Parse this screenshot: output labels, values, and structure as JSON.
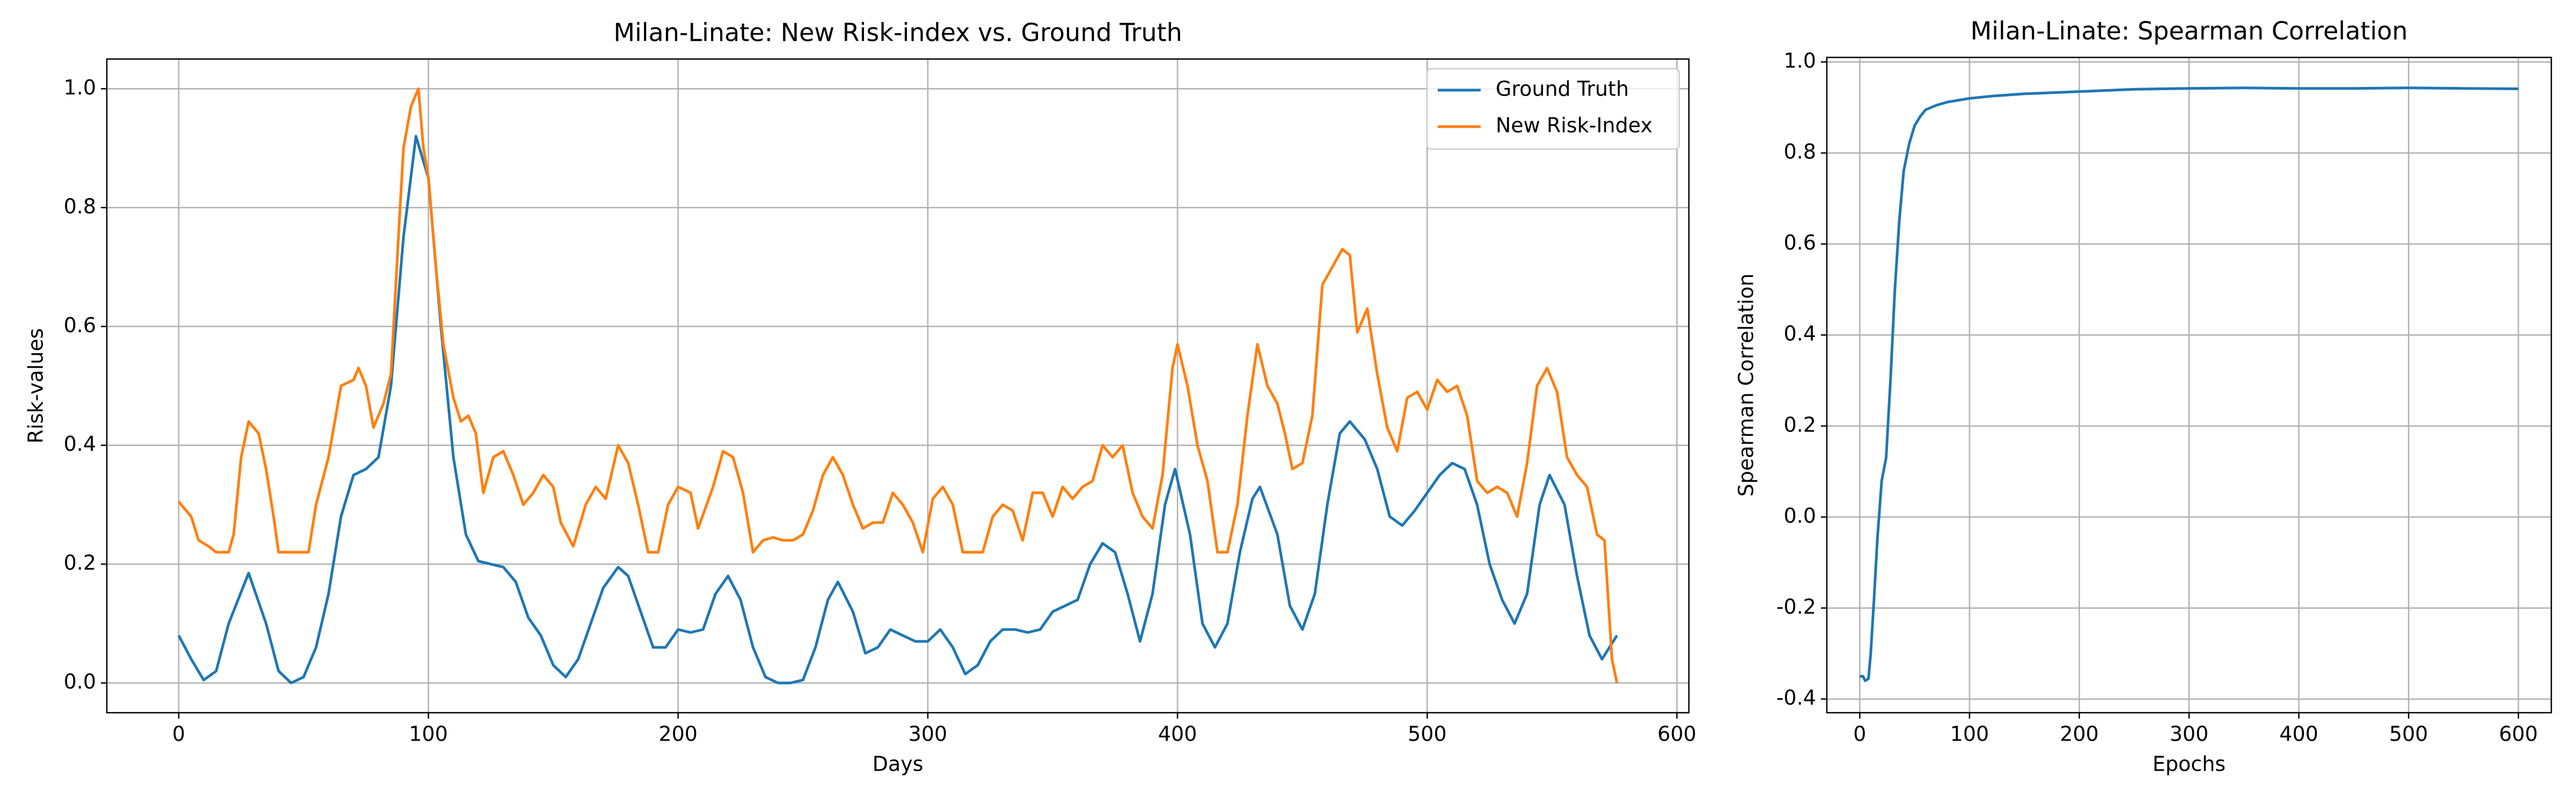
{
  "chart_data": [
    {
      "type": "line",
      "title": "Milan-Linate: New Risk-index vs. Ground Truth",
      "xlabel": "Days",
      "ylabel": "Risk-values",
      "xlim": [
        -28.8,
        604.8
      ],
      "xticks": [
        0,
        100,
        200,
        300,
        400,
        500,
        600
      ],
      "ylim": [
        -0.05,
        1.05
      ],
      "yticks": [
        {
          "value": 0,
          "label": "0.0"
        },
        0.2,
        0.4,
        0.6,
        0.8,
        {
          "value": 1,
          "label": "1.0"
        }
      ],
      "grid": true,
      "legend": "upper-right",
      "series": [
        {
          "name": "Ground Truth",
          "color": "#1f77b4",
          "x": [
            0,
            5,
            10,
            15,
            20,
            28,
            35,
            40,
            45,
            50,
            55,
            60,
            65,
            70,
            75,
            80,
            85,
            90,
            95,
            100,
            105,
            110,
            115,
            120,
            125,
            130,
            135,
            140,
            145,
            150,
            155,
            160,
            165,
            170,
            176,
            180,
            185,
            190,
            195,
            200,
            205,
            210,
            215,
            220,
            225,
            230,
            235,
            240,
            245,
            250,
            255,
            260,
            264,
            270,
            275,
            280,
            285,
            290,
            295,
            300,
            305,
            310,
            315,
            320,
            325,
            330,
            335,
            340,
            345,
            350,
            355,
            360,
            365,
            370,
            375,
            380,
            385,
            390,
            395,
            399,
            405,
            410,
            415,
            420,
            425,
            430,
            433,
            440,
            445,
            450,
            455,
            460,
            465,
            469,
            475,
            480,
            485,
            490,
            495,
            500,
            505,
            510,
            515,
            520,
            525,
            530,
            535,
            540,
            545,
            549,
            555,
            560,
            565,
            570,
            576
          ],
          "values": [
            0.08,
            0.04,
            0.005,
            0.02,
            0.1,
            0.185,
            0.1,
            0.02,
            0.0,
            0.01,
            0.06,
            0.15,
            0.28,
            0.35,
            0.36,
            0.38,
            0.5,
            0.75,
            0.92,
            0.85,
            0.6,
            0.38,
            0.25,
            0.205,
            0.2,
            0.195,
            0.17,
            0.11,
            0.08,
            0.03,
            0.01,
            0.04,
            0.1,
            0.16,
            0.195,
            0.18,
            0.12,
            0.06,
            0.06,
            0.09,
            0.085,
            0.09,
            0.15,
            0.18,
            0.14,
            0.06,
            0.01,
            0.0,
            0.0,
            0.005,
            0.06,
            0.14,
            0.17,
            0.12,
            0.05,
            0.06,
            0.09,
            0.08,
            0.07,
            0.07,
            0.09,
            0.06,
            0.015,
            0.03,
            0.07,
            0.09,
            0.09,
            0.085,
            0.09,
            0.12,
            0.13,
            0.14,
            0.2,
            0.235,
            0.22,
            0.15,
            0.07,
            0.15,
            0.3,
            0.36,
            0.25,
            0.1,
            0.06,
            0.1,
            0.22,
            0.31,
            0.33,
            0.25,
            0.13,
            0.09,
            0.15,
            0.3,
            0.42,
            0.44,
            0.41,
            0.36,
            0.28,
            0.265,
            0.29,
            0.32,
            0.35,
            0.37,
            0.36,
            0.3,
            0.2,
            0.14,
            0.1,
            0.15,
            0.3,
            0.35,
            0.3,
            0.18,
            0.08,
            0.04,
            0.08
          ]
        },
        {
          "name": "New Risk-Index",
          "color": "#ff7f0e",
          "x": [
            0,
            5,
            8,
            12,
            15,
            20,
            22,
            25,
            28,
            32,
            35,
            38,
            40,
            45,
            50,
            52,
            55,
            60,
            65,
            70,
            72,
            75,
            78,
            82,
            85,
            88,
            90,
            93,
            96,
            98,
            100,
            103,
            106,
            110,
            113,
            116,
            119,
            122,
            126,
            130,
            134,
            138,
            142,
            146,
            150,
            153,
            158,
            163,
            167,
            171,
            176,
            180,
            184,
            188,
            192,
            196,
            200,
            205,
            208,
            214,
            218,
            222,
            226,
            230,
            234,
            238,
            242,
            246,
            250,
            254,
            258,
            262,
            266,
            270,
            274,
            278,
            282,
            286,
            290,
            294,
            298,
            302,
            306,
            310,
            314,
            318,
            322,
            326,
            330,
            334,
            338,
            342,
            346,
            350,
            354,
            358,
            362,
            366,
            370,
            374,
            378,
            382,
            386,
            390,
            394,
            398,
            400,
            404,
            408,
            412,
            416,
            420,
            424,
            428,
            432,
            436,
            440,
            443,
            446,
            450,
            454,
            458,
            462,
            466,
            469,
            472,
            476,
            480,
            484,
            488,
            492,
            496,
            500,
            504,
            508,
            512,
            516,
            520,
            524,
            528,
            532,
            536,
            540,
            544,
            548,
            552,
            556,
            560,
            564,
            568,
            571,
            574,
            576
          ],
          "values": [
            0.305,
            0.28,
            0.24,
            0.23,
            0.22,
            0.22,
            0.25,
            0.38,
            0.44,
            0.42,
            0.36,
            0.28,
            0.22,
            0.22,
            0.22,
            0.22,
            0.3,
            0.38,
            0.5,
            0.51,
            0.53,
            0.5,
            0.43,
            0.47,
            0.52,
            0.75,
            0.9,
            0.97,
            1.0,
            0.9,
            0.85,
            0.7,
            0.57,
            0.48,
            0.44,
            0.45,
            0.42,
            0.32,
            0.38,
            0.39,
            0.35,
            0.3,
            0.32,
            0.35,
            0.33,
            0.27,
            0.23,
            0.3,
            0.33,
            0.31,
            0.4,
            0.37,
            0.3,
            0.22,
            0.22,
            0.3,
            0.33,
            0.32,
            0.26,
            0.33,
            0.39,
            0.38,
            0.32,
            0.22,
            0.24,
            0.245,
            0.24,
            0.24,
            0.25,
            0.29,
            0.35,
            0.38,
            0.35,
            0.3,
            0.26,
            0.27,
            0.27,
            0.32,
            0.3,
            0.27,
            0.22,
            0.31,
            0.33,
            0.3,
            0.22,
            0.22,
            0.22,
            0.28,
            0.3,
            0.29,
            0.24,
            0.32,
            0.32,
            0.28,
            0.33,
            0.31,
            0.33,
            0.34,
            0.4,
            0.38,
            0.4,
            0.32,
            0.28,
            0.26,
            0.35,
            0.53,
            0.57,
            0.5,
            0.4,
            0.34,
            0.22,
            0.22,
            0.3,
            0.45,
            0.57,
            0.5,
            0.47,
            0.42,
            0.36,
            0.37,
            0.45,
            0.67,
            0.7,
            0.73,
            0.72,
            0.59,
            0.63,
            0.52,
            0.43,
            0.39,
            0.48,
            0.49,
            0.46,
            0.51,
            0.49,
            0.5,
            0.45,
            0.34,
            0.32,
            0.33,
            0.32,
            0.28,
            0.37,
            0.5,
            0.53,
            0.49,
            0.38,
            0.35,
            0.33,
            0.25,
            0.24,
            0.04,
            0.0
          ]
        }
      ]
    },
    {
      "type": "line",
      "title": "Milan-Linate: Spearman Correlation",
      "xlabel": "Epochs",
      "ylabel": "Spearman Correlation",
      "xlim": [
        -30,
        630
      ],
      "xticks": [
        0,
        100,
        200,
        300,
        400,
        500,
        600
      ],
      "ylim": [
        -0.43,
        1.01
      ],
      "yticks": [
        -0.4,
        -0.2,
        {
          "value": 0,
          "label": "0.0"
        },
        0.2,
        0.4,
        0.6,
        0.8,
        {
          "value": 1,
          "label": "1.0"
        }
      ],
      "grid": true,
      "series": [
        {
          "color": "#1f77b4",
          "x": [
            0,
            3,
            5,
            8,
            10,
            13,
            16,
            20,
            24,
            28,
            32,
            36,
            40,
            45,
            50,
            55,
            60,
            70,
            80,
            90,
            100,
            120,
            150,
            200,
            250,
            300,
            350,
            400,
            450,
            500,
            550,
            600
          ],
          "values": [
            -0.35,
            -0.35,
            -0.36,
            -0.355,
            -0.3,
            -0.18,
            -0.05,
            0.08,
            0.13,
            0.3,
            0.5,
            0.65,
            0.76,
            0.82,
            0.86,
            0.88,
            0.895,
            0.905,
            0.912,
            0.916,
            0.92,
            0.925,
            0.93,
            0.935,
            0.94,
            0.942,
            0.943,
            0.942,
            0.942,
            0.943,
            0.942,
            0.941
          ]
        }
      ]
    }
  ]
}
